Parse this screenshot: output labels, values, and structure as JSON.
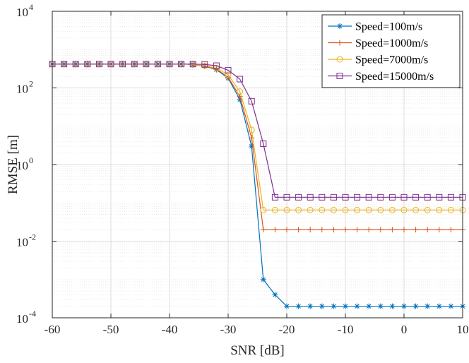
{
  "chart_data": {
    "type": "line",
    "title": "",
    "xlabel": "SNR [dB]",
    "ylabel": "RMSE [m]",
    "xlim": [
      -60,
      10
    ],
    "ylim": [
      0.0001,
      10000
    ],
    "yscale": "log",
    "grid": true,
    "minor_grid": true,
    "legend_position": "top-right",
    "x_ticks": [
      -60,
      -50,
      -40,
      -30,
      -20,
      -10,
      0,
      10
    ],
    "x_tick_labels": [
      "-60",
      "-50",
      "-40",
      "-30",
      "-20",
      "-10",
      "0",
      "10"
    ],
    "y_ticks": [
      {
        "value": 0.0001,
        "base": "10",
        "exp": "-4"
      },
      {
        "value": 0.01,
        "base": "10",
        "exp": "-2"
      },
      {
        "value": 1,
        "base": "10",
        "exp": "0"
      },
      {
        "value": 100,
        "base": "10",
        "exp": "2"
      },
      {
        "value": 10000,
        "base": "10",
        "exp": "4"
      }
    ],
    "x": [
      -60,
      -58,
      -56,
      -54,
      -52,
      -50,
      -48,
      -46,
      -44,
      -42,
      -40,
      -38,
      -36,
      -34,
      -32,
      -30,
      -28,
      -26,
      -24,
      -22,
      -20,
      -18,
      -16,
      -14,
      -12,
      -10,
      -8,
      -6,
      -4,
      -2,
      0,
      2,
      4,
      6,
      8,
      10
    ],
    "series": [
      {
        "name": "Speed=100m/s",
        "color": "#0072BD",
        "marker": "asterisk",
        "values": [
          420,
          420,
          420,
          420,
          420,
          420,
          420,
          420,
          420,
          420,
          420,
          420,
          410,
          370,
          300,
          180,
          50,
          3,
          0.001,
          0.0004,
          0.0002,
          0.0002,
          0.0002,
          0.0002,
          0.0002,
          0.0002,
          0.0002,
          0.0002,
          0.0002,
          0.0002,
          0.0002,
          0.0002,
          0.0002,
          0.0002,
          0.0002,
          0.0002
        ]
      },
      {
        "name": "Speed=1000m/s",
        "color": "#D95319",
        "marker": "plus",
        "values": [
          420,
          420,
          420,
          420,
          420,
          420,
          420,
          420,
          420,
          420,
          420,
          420,
          410,
          370,
          310,
          190,
          60,
          5,
          0.02,
          0.02,
          0.02,
          0.02,
          0.02,
          0.02,
          0.02,
          0.02,
          0.02,
          0.02,
          0.02,
          0.02,
          0.02,
          0.02,
          0.02,
          0.02,
          0.02,
          0.02
        ]
      },
      {
        "name": "Speed=7000m/s",
        "color": "#EDB120",
        "marker": "circle",
        "values": [
          420,
          420,
          420,
          420,
          420,
          420,
          420,
          420,
          420,
          420,
          420,
          420,
          410,
          380,
          330,
          220,
          80,
          8,
          0.065,
          0.065,
          0.065,
          0.065,
          0.065,
          0.065,
          0.065,
          0.065,
          0.065,
          0.065,
          0.065,
          0.065,
          0.065,
          0.065,
          0.065,
          0.065,
          0.065,
          0.065
        ]
      },
      {
        "name": "Speed=15000m/s",
        "color": "#7E2F8E",
        "marker": "square",
        "values": [
          420,
          420,
          420,
          420,
          420,
          420,
          420,
          420,
          420,
          420,
          420,
          420,
          420,
          410,
          380,
          290,
          170,
          45,
          3.5,
          0.14,
          0.14,
          0.14,
          0.14,
          0.14,
          0.14,
          0.14,
          0.14,
          0.14,
          0.14,
          0.14,
          0.14,
          0.14,
          0.14,
          0.14,
          0.14,
          0.14
        ]
      }
    ]
  }
}
